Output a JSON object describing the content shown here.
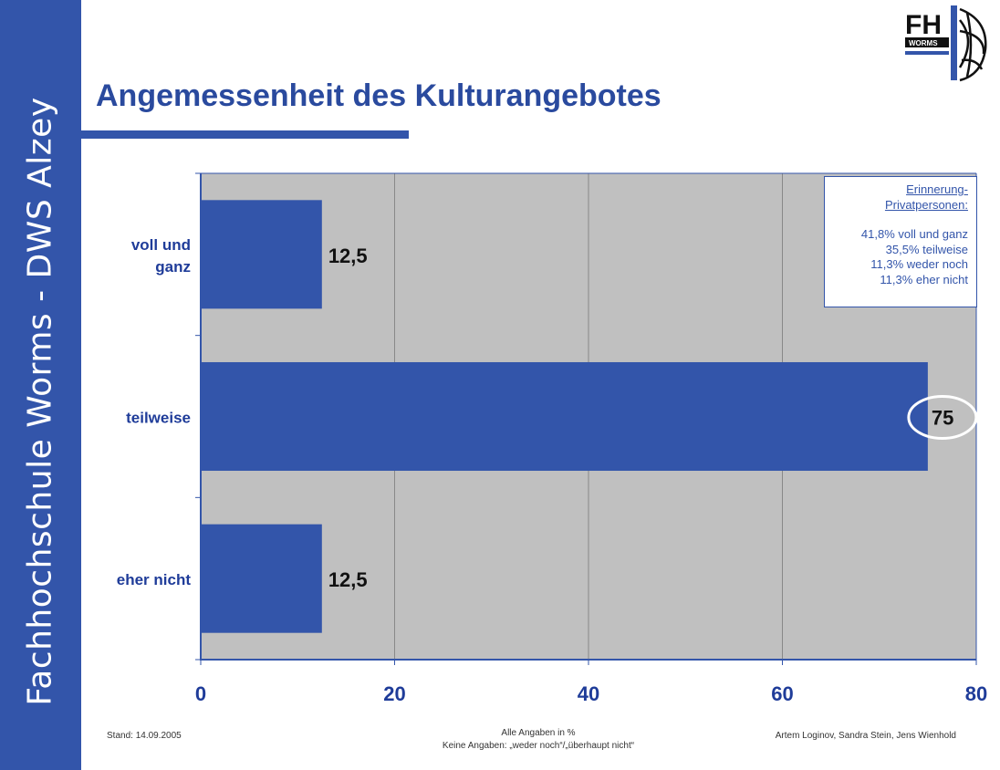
{
  "sidebar": {
    "text": "Fachhochschule Worms - DWS Alzey"
  },
  "header": {
    "title": "Angemessenheit des Kulturangebotes",
    "logo_text": "FH",
    "logo_subtext": "WORMS"
  },
  "chart_data": {
    "type": "bar",
    "orientation": "horizontal",
    "categories": [
      "voll und ganz",
      "teilweise",
      "eher nicht"
    ],
    "category_lines": [
      [
        "voll und",
        "ganz"
      ],
      [
        "teilweise"
      ],
      [
        "eher nicht"
      ]
    ],
    "values": [
      12.5,
      75,
      12.5
    ],
    "value_labels": [
      "12,5",
      "75",
      "12,5"
    ],
    "xlim": [
      0,
      80
    ],
    "xticks": [
      0,
      20,
      40,
      60,
      80
    ],
    "xtick_labels": [
      "0",
      "20",
      "40",
      "60",
      "80"
    ],
    "grid": "vertical",
    "highlighted_label": "75",
    "colors": {
      "bar": "#3355aa",
      "plot_bg": "#c0c0c0",
      "tick_text": "#1f3c99",
      "category_text": "#1f3c99"
    }
  },
  "info_box": {
    "heading_line1": "Erinnerung-",
    "heading_line2": "Privatpersonen:",
    "lines": [
      "41,8% voll und ganz",
      "35,5% teilweise",
      "11,3% weder noch",
      "11,3% eher nicht"
    ]
  },
  "footer": {
    "left": "Stand: 14.09.2005",
    "center_line1": "Alle Angaben in %",
    "center_line2": "Keine Angaben: „weder noch“/„überhaupt nicht“",
    "right": "Artem Loginov, Sandra Stein, Jens Wienhold"
  }
}
